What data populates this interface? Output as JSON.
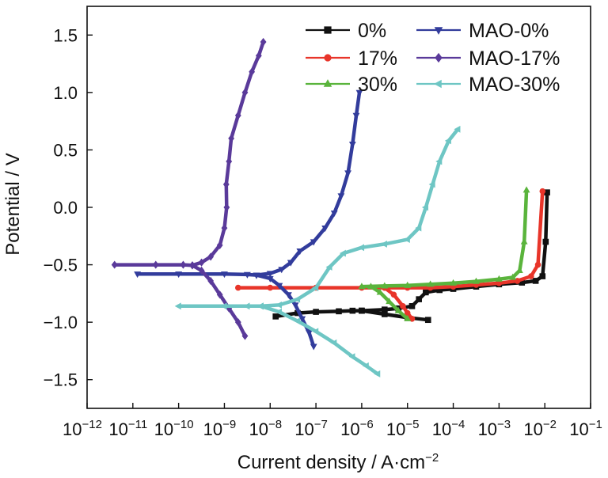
{
  "chart_data": {
    "type": "line",
    "xlabel": "Current density / A·cm",
    "xlabel_exponent": "−2",
    "ylabel": "Potential / V",
    "x_scale": "log",
    "xlim_exponent": [
      -12,
      -1
    ],
    "x_tick_base": "10",
    "x_tick_exponents": [
      "−12",
      "−11",
      "−10",
      "−9",
      "−8",
      "−7",
      "−6",
      "−5",
      "−4",
      "−3",
      "−2",
      "−1"
    ],
    "ylim": [
      -1.75,
      1.75
    ],
    "y_ticks": [
      "1.5",
      "1.0",
      "0.5",
      "0.0",
      "−0.5",
      "−1.0",
      "−1.5"
    ],
    "y_tick_values": [
      1.5,
      1.0,
      0.5,
      0.0,
      -0.5,
      -1.0,
      -1.5
    ],
    "grid": false,
    "legend_position": "top-right",
    "series": [
      {
        "name": "0%",
        "color": "#111111",
        "marker": "square",
        "branches": [
          [
            [
              -7.88,
              -0.95
            ],
            [
              -7.4,
              -0.92
            ],
            [
              -7.0,
              -0.91
            ],
            [
              -6.5,
              -0.905
            ],
            [
              -6.2,
              -0.9
            ],
            [
              -6.0,
              -0.9
            ]
          ],
          [
            [
              -6.0,
              -0.9
            ],
            [
              -5.5,
              -0.89
            ],
            [
              -5.2,
              -0.88
            ],
            [
              -4.9,
              -0.86
            ],
            [
              -4.75,
              -0.8
            ],
            [
              -4.6,
              -0.74
            ],
            [
              -4.3,
              -0.72
            ],
            [
              -4.0,
              -0.71
            ],
            [
              -3.5,
              -0.69
            ],
            [
              -3.0,
              -0.67
            ],
            [
              -2.5,
              -0.655
            ],
            [
              -2.2,
              -0.64
            ],
            [
              -2.05,
              -0.6
            ],
            [
              -1.98,
              -0.3
            ],
            [
              -1.95,
              0.13
            ]
          ],
          [
            [
              -6.0,
              -0.9
            ],
            [
              -5.5,
              -0.93
            ],
            [
              -5.0,
              -0.96
            ],
            [
              -4.55,
              -0.98
            ]
          ]
        ]
      },
      {
        "name": "17%",
        "color": "#e8352a",
        "marker": "circle",
        "branches": [
          [
            [
              -8.7,
              -0.7
            ],
            [
              -8.0,
              -0.7
            ],
            [
              -7.0,
              -0.7
            ],
            [
              -6.0,
              -0.7
            ],
            [
              -5.5,
              -0.7
            ]
          ],
          [
            [
              -5.5,
              -0.7
            ],
            [
              -5.0,
              -0.7
            ],
            [
              -4.5,
              -0.7
            ],
            [
              -4.0,
              -0.69
            ],
            [
              -3.5,
              -0.675
            ],
            [
              -3.0,
              -0.66
            ],
            [
              -2.6,
              -0.64
            ],
            [
              -2.3,
              -0.6
            ],
            [
              -2.15,
              -0.5
            ],
            [
              -2.05,
              0.14
            ]
          ],
          [
            [
              -5.5,
              -0.7
            ],
            [
              -5.3,
              -0.76
            ],
            [
              -5.1,
              -0.86
            ],
            [
              -5.0,
              -0.92
            ],
            [
              -4.9,
              -0.97
            ]
          ]
        ]
      },
      {
        "name": "30%",
        "color": "#5ab43c",
        "marker": "triangle-up",
        "branches": [
          [
            [
              -6.0,
              -0.69
            ],
            [
              -5.5,
              -0.685
            ],
            [
              -5.0,
              -0.68
            ],
            [
              -4.5,
              -0.67
            ],
            [
              -4.0,
              -0.66
            ],
            [
              -3.5,
              -0.645
            ],
            [
              -3.0,
              -0.625
            ],
            [
              -2.7,
              -0.61
            ],
            [
              -2.55,
              -0.55
            ],
            [
              -2.45,
              -0.3
            ],
            [
              -2.4,
              0.15
            ]
          ],
          [
            [
              -5.8,
              -0.69
            ],
            [
              -5.6,
              -0.74
            ],
            [
              -5.4,
              -0.82
            ],
            [
              -5.2,
              -0.9
            ],
            [
              -5.0,
              -0.97
            ]
          ]
        ]
      },
      {
        "name": "MAO-0%",
        "color": "#323c9c",
        "marker": "triangle-down",
        "branches": [
          [
            [
              -10.9,
              -0.58
            ],
            [
              -10.0,
              -0.58
            ],
            [
              -9.0,
              -0.58
            ],
            [
              -8.5,
              -0.585
            ],
            [
              -8.3,
              -0.59
            ]
          ],
          [
            [
              -8.3,
              -0.59
            ],
            [
              -8.0,
              -0.575
            ],
            [
              -7.75,
              -0.54
            ],
            [
              -7.55,
              -0.48
            ],
            [
              -7.35,
              -0.38
            ],
            [
              -7.05,
              -0.3
            ],
            [
              -6.8,
              -0.18
            ],
            [
              -6.6,
              -0.05
            ],
            [
              -6.45,
              0.1
            ],
            [
              -6.3,
              0.3
            ],
            [
              -6.2,
              0.55
            ],
            [
              -6.12,
              0.8
            ],
            [
              -6.05,
              1.0
            ]
          ],
          [
            [
              -8.3,
              -0.59
            ],
            [
              -8.0,
              -0.62
            ],
            [
              -7.8,
              -0.68
            ],
            [
              -7.6,
              -0.76
            ],
            [
              -7.45,
              -0.85
            ],
            [
              -7.3,
              -0.97
            ],
            [
              -7.15,
              -1.09
            ],
            [
              -7.05,
              -1.21
            ]
          ]
        ]
      },
      {
        "name": "MAO-17%",
        "color": "#5a3a9a",
        "marker": "diamond",
        "branches": [
          [
            [
              -11.4,
              -0.5
            ],
            [
              -10.5,
              -0.5
            ],
            [
              -9.9,
              -0.5
            ],
            [
              -9.7,
              -0.505
            ]
          ],
          [
            [
              -9.7,
              -0.505
            ],
            [
              -9.5,
              -0.48
            ],
            [
              -9.3,
              -0.43
            ],
            [
              -9.1,
              -0.33
            ],
            [
              -9.0,
              -0.18
            ],
            [
              -8.95,
              0.0
            ],
            [
              -8.96,
              0.2
            ],
            [
              -8.9,
              0.4
            ],
            [
              -8.85,
              0.6
            ],
            [
              -8.7,
              0.8
            ],
            [
              -8.55,
              1.0
            ],
            [
              -8.4,
              1.18
            ],
            [
              -8.25,
              1.32
            ],
            [
              -8.15,
              1.44
            ]
          ],
          [
            [
              -9.7,
              -0.505
            ],
            [
              -9.5,
              -0.55
            ],
            [
              -9.3,
              -0.64
            ],
            [
              -9.1,
              -0.76
            ],
            [
              -8.9,
              -0.88
            ],
            [
              -8.7,
              -1.0
            ],
            [
              -8.55,
              -1.12
            ]
          ]
        ]
      },
      {
        "name": "MAO-30%",
        "color": "#6ec6c4",
        "marker": "triangle-left",
        "branches": [
          [
            [
              -10.0,
              -0.86
            ],
            [
              -9.0,
              -0.86
            ],
            [
              -8.5,
              -0.86
            ],
            [
              -8.2,
              -0.86
            ]
          ],
          [
            [
              -8.2,
              -0.86
            ],
            [
              -7.8,
              -0.85
            ],
            [
              -7.4,
              -0.8
            ],
            [
              -7.0,
              -0.7
            ],
            [
              -6.7,
              -0.52
            ],
            [
              -6.4,
              -0.4
            ],
            [
              -6.0,
              -0.35
            ],
            [
              -5.5,
              -0.32
            ],
            [
              -5.0,
              -0.28
            ],
            [
              -4.75,
              -0.18
            ],
            [
              -4.6,
              0.0
            ],
            [
              -4.45,
              0.2
            ],
            [
              -4.3,
              0.4
            ],
            [
              -4.1,
              0.58
            ],
            [
              -3.9,
              0.68
            ]
          ],
          [
            [
              -8.2,
              -0.86
            ],
            [
              -7.8,
              -0.91
            ],
            [
              -7.4,
              -0.99
            ],
            [
              -7.0,
              -1.08
            ],
            [
              -6.6,
              -1.18
            ],
            [
              -6.2,
              -1.3
            ],
            [
              -5.9,
              -1.38
            ],
            [
              -5.65,
              -1.45
            ]
          ]
        ]
      }
    ]
  }
}
